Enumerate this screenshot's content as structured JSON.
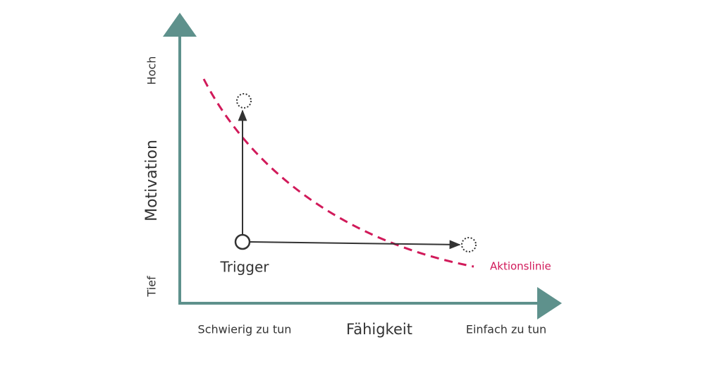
{
  "axes": {
    "y": {
      "label": "Motivation",
      "high": "Hoch",
      "low": "Tief"
    },
    "x": {
      "label": "Fähigkeit",
      "low": "Schwierig zu tun",
      "high": "Einfach zu tun"
    }
  },
  "curve": {
    "label": "Aktionslinie"
  },
  "trigger": {
    "label": "Trigger"
  }
}
